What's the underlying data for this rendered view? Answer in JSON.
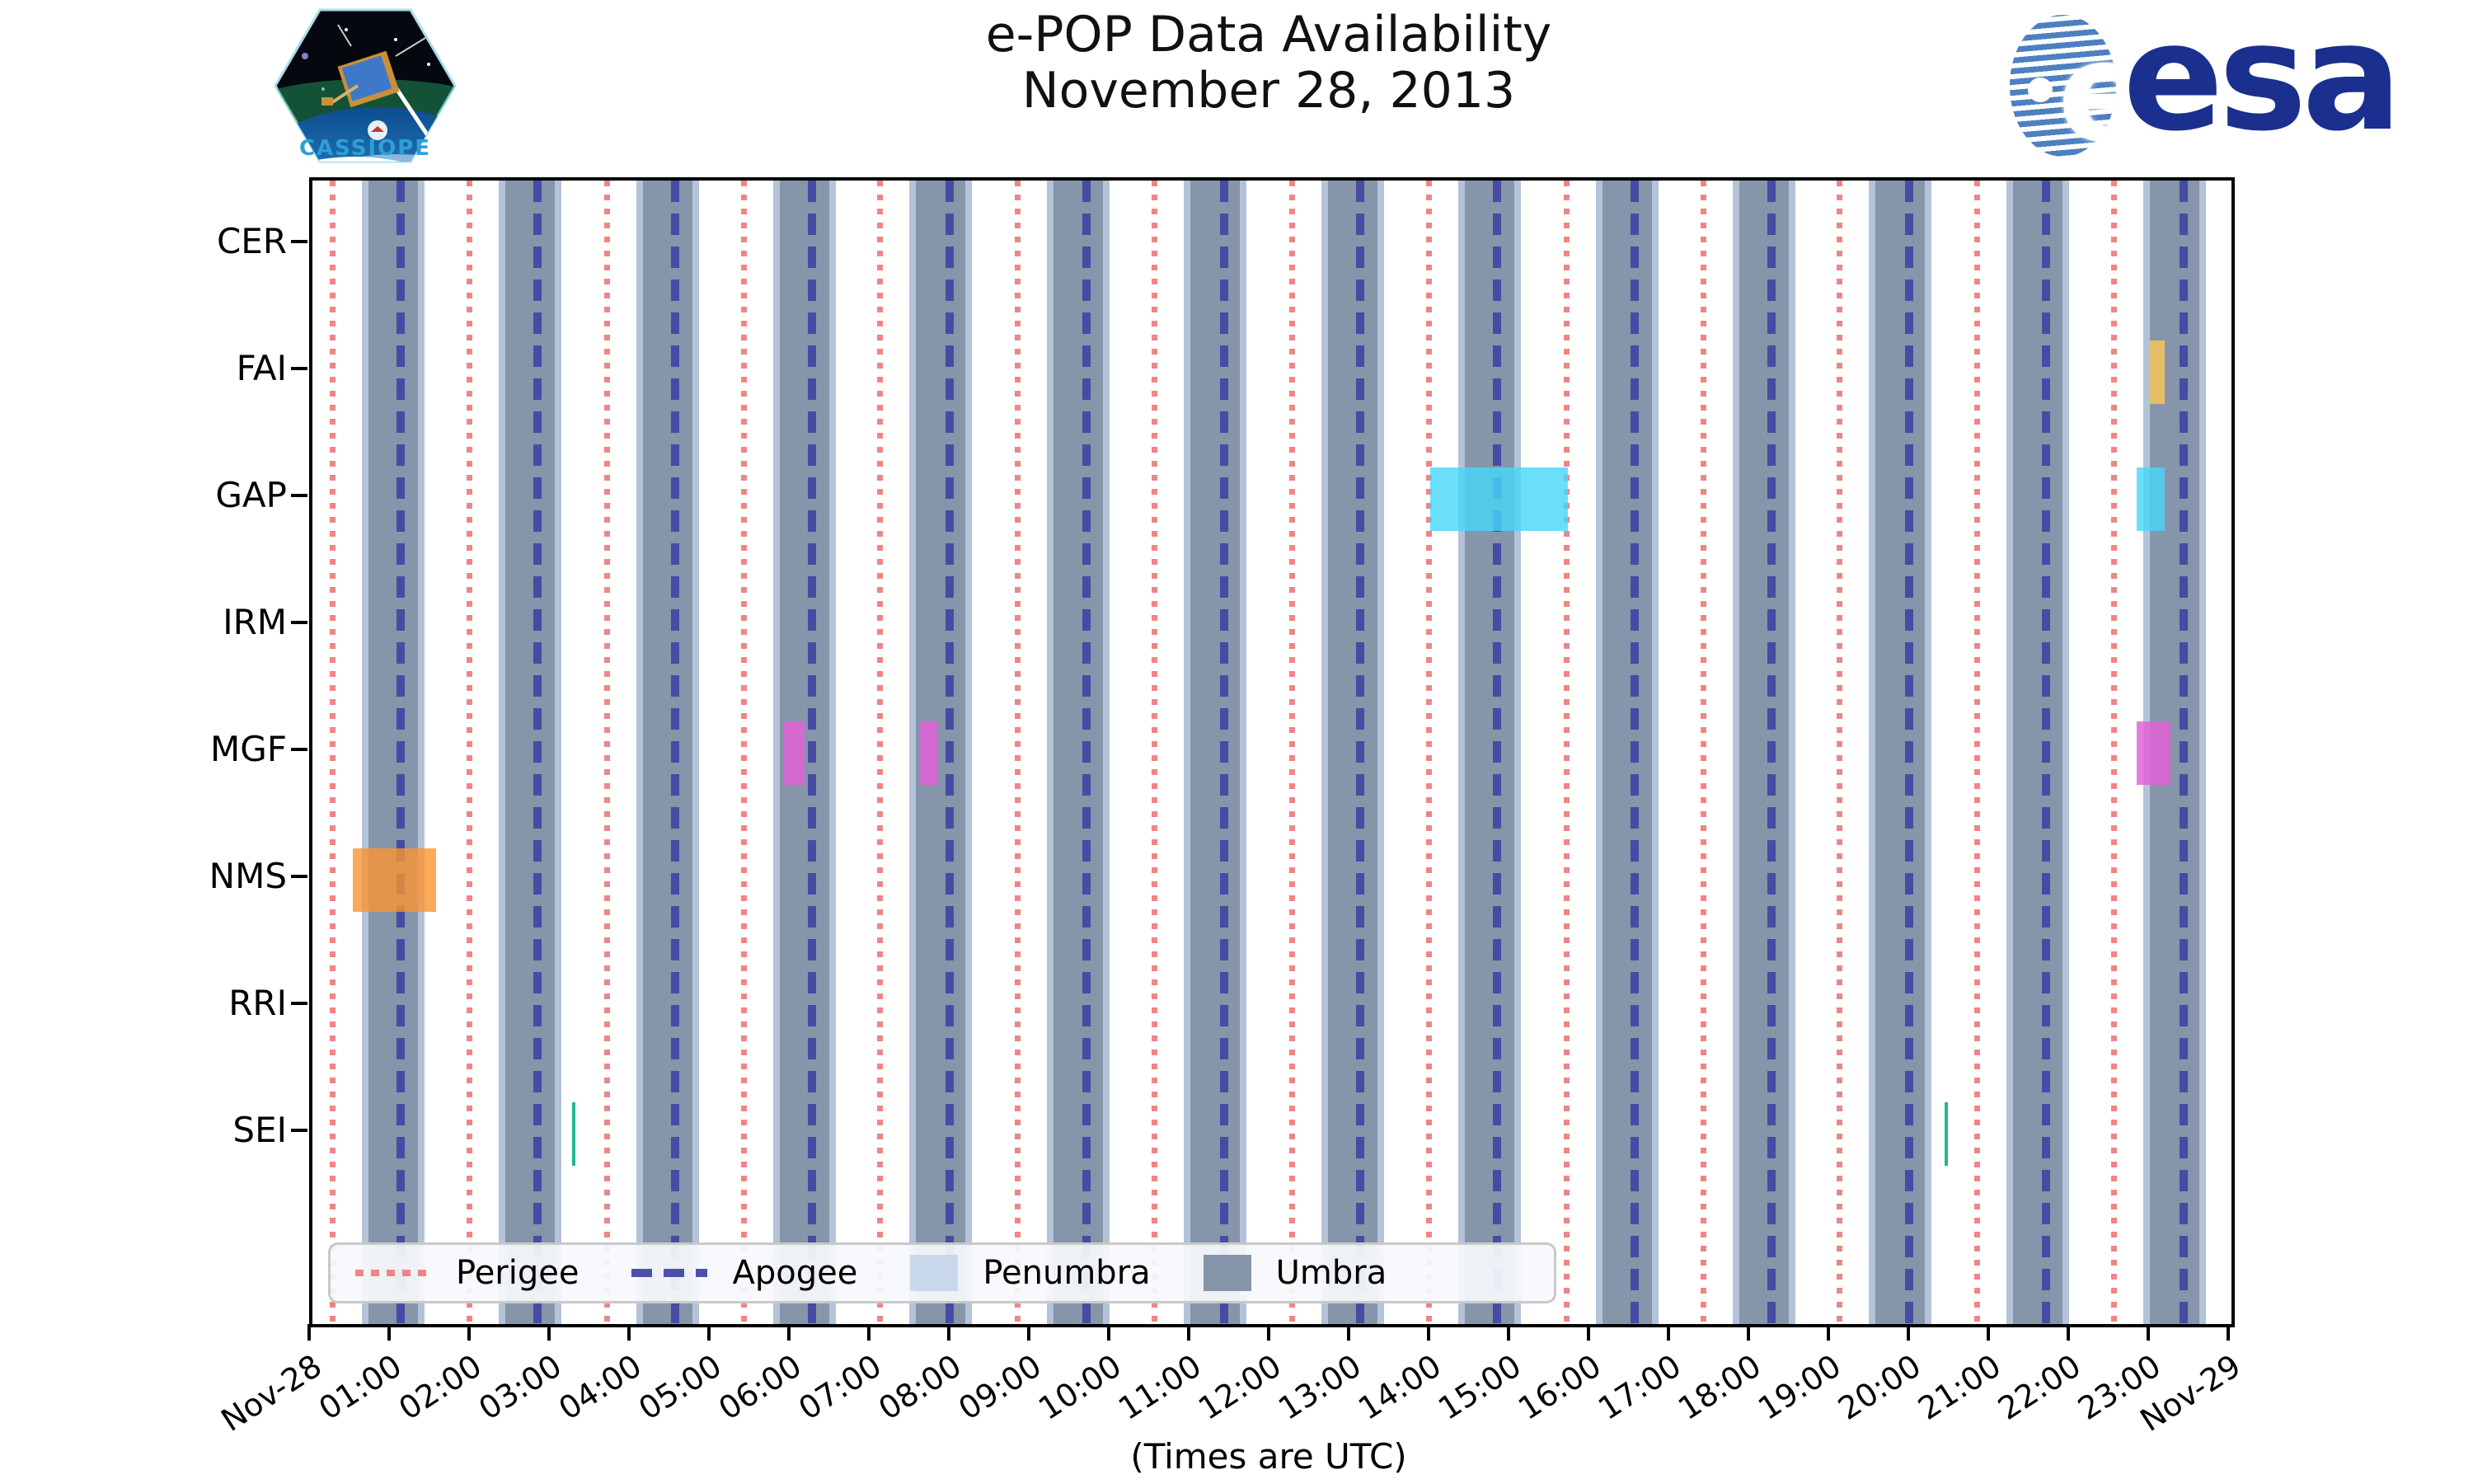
{
  "title": {
    "line1": "e-POP Data Availability",
    "line2": "November 28, 2013"
  },
  "branding": {
    "cassiope_label": "CASSIOPE",
    "esa_label": "esa"
  },
  "x_axis": {
    "caption": "(Times are UTC)",
    "tick_labels": [
      "Nov-28",
      "01:00",
      "02:00",
      "03:00",
      "04:00",
      "05:00",
      "06:00",
      "07:00",
      "08:00",
      "09:00",
      "10:00",
      "11:00",
      "12:00",
      "13:00",
      "14:00",
      "15:00",
      "16:00",
      "17:00",
      "18:00",
      "19:00",
      "20:00",
      "21:00",
      "22:00",
      "23:00",
      "Nov-29"
    ]
  },
  "y_axis": {
    "instruments": [
      "CER",
      "FAI",
      "GAP",
      "IRM",
      "MGF",
      "NMS",
      "RRI",
      "SEI"
    ]
  },
  "legend": [
    {
      "label": "Perigee",
      "type": "dotted-line",
      "color": "#f08585"
    },
    {
      "label": "Apogee",
      "type": "dashed-line",
      "color": "#4c51a8"
    },
    {
      "label": "Penumbra",
      "type": "patch",
      "color": "#c9d8ea"
    },
    {
      "label": "Umbra",
      "type": "patch",
      "color": "#8695a9"
    }
  ],
  "colors": {
    "perigee_line": "#f08585",
    "apogee_line": "#474ba3",
    "umbra_band": "#8695a9",
    "penumbra_band": "#b3c3d8"
  },
  "chart_data": {
    "type": "timeline",
    "title": "e-POP Data Availability November 28, 2013",
    "date": "November 28, 2013",
    "time_range_hours": [
      0,
      24
    ],
    "rows": [
      "CER",
      "FAI",
      "GAP",
      "IRM",
      "MGF",
      "NMS",
      "RRI",
      "SEI"
    ],
    "orbit": {
      "orbital_period_minutes": 103,
      "perigee_times": [
        "00:15",
        "01:58",
        "03:41",
        "05:24",
        "07:06",
        "08:49",
        "10:32",
        "12:15",
        "13:58",
        "15:41",
        "17:24",
        "19:06",
        "20:49",
        "22:32"
      ],
      "apogee_times": [
        "01:06",
        "02:49",
        "04:32",
        "06:15",
        "07:58",
        "09:41",
        "11:24",
        "13:06",
        "14:49",
        "16:32",
        "18:15",
        "19:58",
        "21:41",
        "23:24"
      ],
      "umbra_intervals": [
        [
          "00:42",
          "01:19"
        ],
        [
          "02:25",
          "03:02"
        ],
        [
          "04:08",
          "04:45"
        ],
        [
          "05:51",
          "06:28"
        ],
        [
          "07:33",
          "08:10"
        ],
        [
          "09:16",
          "09:53"
        ],
        [
          "10:59",
          "11:36"
        ],
        [
          "12:42",
          "13:19"
        ],
        [
          "14:25",
          "15:02"
        ],
        [
          "16:08",
          "16:45"
        ],
        [
          "17:51",
          "18:28"
        ],
        [
          "19:33",
          "20:10"
        ],
        [
          "21:16",
          "21:53"
        ],
        [
          "22:59",
          "23:36"
        ]
      ],
      "penumbra_margin_minutes": 5
    },
    "availability": [
      {
        "instrument": "CER",
        "intervals": [],
        "color": "#999999",
        "alpha": 0.85
      },
      {
        "instrument": "FAI",
        "intervals": [
          [
            "22:59",
            "23:10"
          ]
        ],
        "color": "#eec35e",
        "alpha": 0.9
      },
      {
        "instrument": "GAP",
        "intervals": [
          [
            "13:59",
            "15:42"
          ],
          [
            "22:49",
            "23:10"
          ]
        ],
        "color": "#45d7f8",
        "alpha": 0.8
      },
      {
        "instrument": "IRM",
        "intervals": [],
        "color": "#999999",
        "alpha": 0.85
      },
      {
        "instrument": "MGF",
        "intervals": [
          [
            "05:54",
            "06:09"
          ],
          [
            "07:35",
            "07:49"
          ],
          [
            "22:49",
            "23:14"
          ]
        ],
        "color": "#e263d8",
        "alpha": 0.85
      },
      {
        "instrument": "NMS",
        "intervals": [
          [
            "00:30",
            "01:33"
          ]
        ],
        "color": "#fa9432",
        "alpha": 0.8
      },
      {
        "instrument": "RRI",
        "intervals": [],
        "color": "#999999",
        "alpha": 0.85
      },
      {
        "instrument": "SEI",
        "intervals": [
          [
            "03:15",
            "03:16"
          ],
          [
            "20:25",
            "20:26"
          ]
        ],
        "color": "#25b591",
        "alpha": 1
      }
    ]
  }
}
